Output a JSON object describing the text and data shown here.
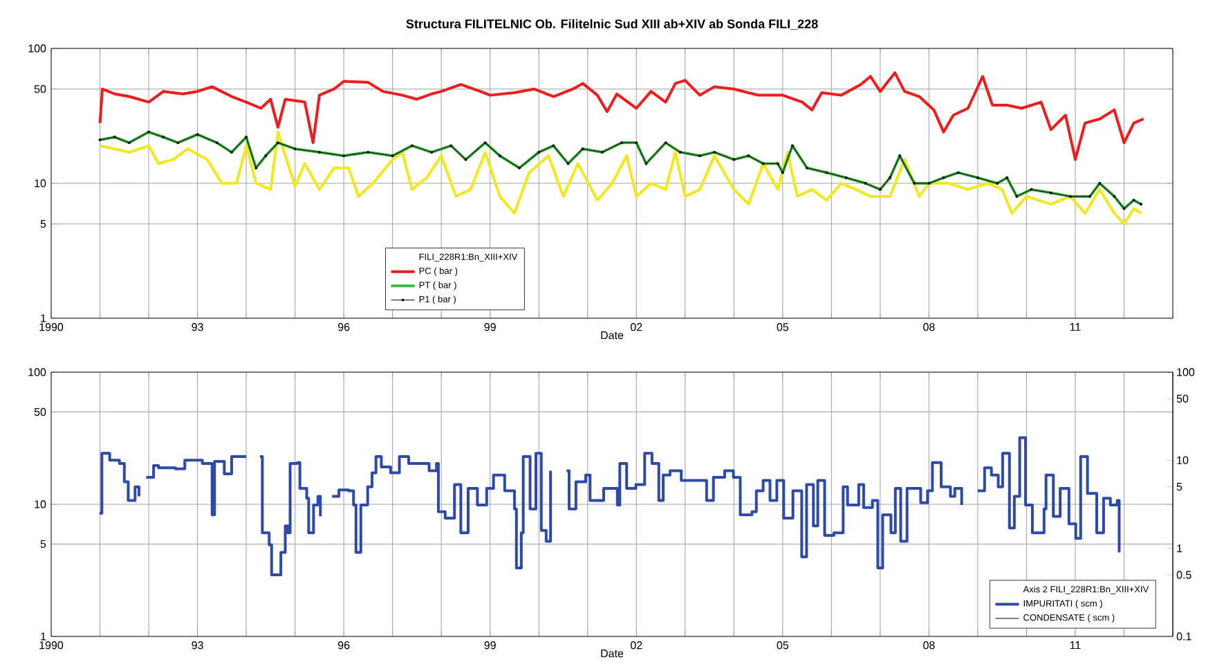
{
  "chart_data": [
    {
      "type": "line",
      "title": "Structura  FILITELNIC  Ob. Filitelnic Sud XIII ab+XIV ab   Sonda  FILI_228",
      "xlabel": "Date",
      "legend_title": "FILI_228R1:Bn_XIII+XIV",
      "legend": "bottom",
      "grid": true,
      "log": true,
      "xlim": [
        1990,
        2013
      ],
      "ylim": [
        1,
        100
      ],
      "yticks": [
        1,
        5,
        10,
        50,
        100
      ],
      "xticks": [
        {
          "value": 1990,
          "label": "1990"
        },
        {
          "value": 1991,
          "label": null
        },
        {
          "value": 1992,
          "label": null
        },
        {
          "value": 1993,
          "label": "93"
        },
        {
          "value": 1994,
          "label": null
        },
        {
          "value": 1995,
          "label": null
        },
        {
          "value": 1996,
          "label": "96"
        },
        {
          "value": 1997,
          "label": null
        },
        {
          "value": 1998,
          "label": null
        },
        {
          "value": 1999,
          "label": "99"
        },
        {
          "value": 2000,
          "label": null
        },
        {
          "value": 2001,
          "label": null
        },
        {
          "value": 2002,
          "label": "02"
        },
        {
          "value": 2003,
          "label": null
        },
        {
          "value": 2004,
          "label": null
        },
        {
          "value": 2005,
          "label": "05"
        },
        {
          "value": 2006,
          "label": null
        },
        {
          "value": 2007,
          "label": null
        },
        {
          "value": 2008,
          "label": "08"
        },
        {
          "value": 2009,
          "label": null
        },
        {
          "value": 2010,
          "label": null
        },
        {
          "value": 2011,
          "label": "11"
        },
        {
          "value": 2012,
          "label": null
        },
        {
          "value": 2013,
          "label": null
        }
      ],
      "series": [
        {
          "name": "PC ( bar )",
          "color": "#ee1c1c",
          "x": [
            1991.0,
            1991.05,
            1991.3,
            1991.6,
            1992.0,
            1992.3,
            1992.7,
            1993.0,
            1993.3,
            1993.7,
            1994.0,
            1994.3,
            1994.5,
            1994.65,
            1994.8,
            1995.2,
            1995.37,
            1995.5,
            1995.8,
            1996.0,
            1996.5,
            1996.8,
            1997.2,
            1997.5,
            1997.8,
            1998.0,
            1998.4,
            1998.8,
            1999.0,
            1999.5,
            1999.9,
            2000.3,
            2000.7,
            2000.9,
            2001.2,
            2001.4,
            2001.6,
            2002.0,
            2002.3,
            2002.6,
            2002.8,
            2003.0,
            2003.3,
            2003.6,
            2004.0,
            2004.5,
            2005.0,
            2005.4,
            2005.6,
            2005.8,
            2006.2,
            2006.6,
            2006.8,
            2007.0,
            2007.3,
            2007.5,
            2007.8,
            2008.1,
            2008.3,
            2008.5,
            2008.8,
            2009.1,
            2009.3,
            2009.6,
            2009.9,
            2010.3,
            2010.5,
            2010.8,
            2011.0,
            2011.2,
            2011.5,
            2011.8,
            2012.0,
            2012.2,
            2012.4
          ],
          "values": [
            28,
            50,
            46,
            44,
            40,
            48,
            46,
            48,
            52,
            44,
            40,
            36,
            42,
            26,
            42,
            40,
            20,
            45,
            50,
            57,
            56,
            48,
            45,
            42,
            46,
            48,
            54,
            48,
            45,
            47,
            50,
            44,
            50,
            55,
            45,
            34,
            46,
            36,
            48,
            40,
            55,
            58,
            45,
            52,
            50,
            45,
            45,
            40,
            35,
            47,
            45,
            54,
            62,
            48,
            66,
            48,
            44,
            35,
            24,
            32,
            36,
            62,
            38,
            38,
            36,
            40,
            25,
            32,
            15,
            28,
            30,
            35,
            20,
            28,
            30
          ]
        },
        {
          "color": "#f2e81c",
          "x": [
            1991.0,
            1991.3,
            1991.6,
            1992.0,
            1992.2,
            1992.5,
            1992.8,
            1993.2,
            1993.5,
            1993.8,
            1994.0,
            1994.2,
            1994.5,
            1994.65,
            1995.0,
            1995.2,
            1995.5,
            1995.8,
            1996.1,
            1996.3,
            1996.6,
            1997.0,
            1997.2,
            1997.4,
            1997.7,
            1998.0,
            1998.3,
            1998.6,
            1998.9,
            1999.2,
            1999.5,
            1999.8,
            2000.2,
            2000.5,
            2000.8,
            2001.2,
            2001.5,
            2001.8,
            2002.0,
            2002.3,
            2002.6,
            2002.8,
            2003.0,
            2003.3,
            2003.6,
            2004.0,
            2004.3,
            2004.6,
            2004.9,
            2005.1,
            2005.3,
            2005.6,
            2005.9,
            2006.2,
            2006.5,
            2006.8,
            2007.2,
            2007.5,
            2007.8,
            2008.0,
            2008.4,
            2008.8,
            2009.2,
            2009.5,
            2009.7,
            2010.0,
            2010.5,
            2010.9,
            2011.2,
            2011.5,
            2011.8,
            2012.0,
            2012.2,
            2012.35
          ],
          "values": [
            19,
            18,
            17,
            19,
            14,
            15,
            18,
            15,
            10,
            10,
            19,
            10,
            9,
            24,
            9.5,
            14,
            9,
            13,
            13,
            8,
            10,
            15,
            17,
            9,
            11,
            16,
            8,
            9,
            17,
            8,
            6,
            12,
            16,
            8,
            14,
            7.5,
            10,
            16,
            8,
            10,
            9,
            17,
            8,
            9,
            16,
            9,
            7,
            14,
            9,
            17,
            8,
            9,
            7.5,
            10,
            9,
            8,
            8,
            15,
            8,
            10,
            10,
            9,
            10,
            9,
            6,
            8,
            7,
            8,
            6,
            9,
            6,
            5,
            6.5,
            6
          ]
        },
        {
          "name": "PT ( bar )",
          "color": "#3cb83c",
          "x": [
            1991.0,
            1991.3,
            1991.6,
            1992.0,
            1992.3,
            1992.6,
            1993.0,
            1993.4,
            1993.7,
            1994.0,
            1994.2,
            1994.4,
            1994.65,
            1995.0,
            1995.5,
            1996.0,
            1996.5,
            1997.0,
            1997.4,
            1997.8,
            1998.2,
            1998.5,
            1998.9,
            1999.2,
            1999.6,
            2000.0,
            2000.3,
            2000.6,
            2000.9,
            2001.3,
            2001.7,
            2002.0,
            2002.2,
            2002.6,
            2002.9,
            2003.3,
            2003.6,
            2004.0,
            2004.3,
            2004.6,
            2004.9,
            2005.0,
            2005.2,
            2005.5,
            2005.9,
            2006.3,
            2006.7,
            2007.0,
            2007.2,
            2007.4,
            2007.7,
            2008.0,
            2008.3,
            2008.6,
            2009.0,
            2009.4,
            2009.6,
            2009.8,
            2010.1,
            2010.5,
            2010.9,
            2011.3,
            2011.5,
            2011.8,
            2012.0,
            2012.2,
            2012.35
          ],
          "values": [
            21,
            22,
            20,
            24,
            22,
            20,
            23,
            20,
            17,
            22,
            13,
            16,
            20,
            18,
            17,
            16,
            17,
            16,
            19,
            17,
            19,
            15,
            20,
            16,
            13,
            17,
            19,
            14,
            18,
            17,
            20,
            20,
            14,
            20,
            17,
            16,
            17,
            15,
            16,
            14,
            14,
            12,
            19,
            13,
            12,
            11,
            10,
            9,
            11,
            16,
            10,
            10,
            11,
            12,
            11,
            10,
            11,
            8,
            9,
            8.5,
            8,
            8,
            10,
            8,
            6.5,
            7.5,
            7
          ]
        },
        {
          "name": "P1 ( bar )",
          "color": "#000000",
          "marker": "circle",
          "x": [
            1991.0,
            1991.3,
            1991.6,
            1992.0,
            1992.3,
            1992.6,
            1993.0,
            1993.4,
            1993.7,
            1994.0,
            1994.2,
            1994.4,
            1994.65,
            1995.0,
            1995.5,
            1996.0,
            1996.5,
            1997.0,
            1997.4,
            1997.8,
            1998.2,
            1998.5,
            1998.9,
            1999.2,
            1999.6,
            2000.0,
            2000.3,
            2000.6,
            2000.9,
            2001.3,
            2001.7,
            2002.0,
            2002.2,
            2002.6,
            2002.9,
            2003.3,
            2003.6,
            2004.0,
            2004.3,
            2004.6,
            2004.9,
            2005.0,
            2005.2,
            2005.5,
            2005.9,
            2006.3,
            2006.7,
            2007.0,
            2007.2,
            2007.4,
            2007.7,
            2008.0,
            2008.3,
            2008.6,
            2009.0,
            2009.4,
            2009.6,
            2009.8,
            2010.1,
            2010.5,
            2010.9,
            2011.3,
            2011.5,
            2011.8,
            2012.0,
            2012.2,
            2012.35
          ],
          "values": [
            21,
            22,
            20,
            24,
            22,
            20,
            23,
            20,
            17,
            22,
            13,
            16,
            20,
            18,
            17,
            16,
            17,
            16,
            19,
            17,
            19,
            15,
            20,
            16,
            13,
            17,
            19,
            14,
            18,
            17,
            20,
            20,
            14,
            20,
            17,
            16,
            17,
            15,
            16,
            14,
            14,
            12,
            19,
            13,
            12,
            11,
            10,
            9,
            11,
            16,
            10,
            10,
            11,
            12,
            11,
            10,
            11,
            8,
            9,
            8.5,
            8,
            8,
            10,
            8,
            6.5,
            7.5,
            7
          ]
        }
      ]
    },
    {
      "type": "line",
      "xlabel": "Date",
      "grid": true,
      "log": true,
      "xlim": [
        1990,
        2013
      ],
      "ylim": [
        1,
        100
      ],
      "yticks": [
        1,
        5,
        10,
        50,
        100
      ],
      "xticks": [
        {
          "value": 1990,
          "label": "1990"
        },
        {
          "value": 1991,
          "label": null
        },
        {
          "value": 1992,
          "label": null
        },
        {
          "value": 1993,
          "label": "93"
        },
        {
          "value": 1994,
          "label": null
        },
        {
          "value": 1995,
          "label": null
        },
        {
          "value": 1996,
          "label": "96"
        },
        {
          "value": 1997,
          "label": null
        },
        {
          "value": 1998,
          "label": null
        },
        {
          "value": 1999,
          "label": "99"
        },
        {
          "value": 2000,
          "label": null
        },
        {
          "value": 2001,
          "label": null
        },
        {
          "value": 2002,
          "label": "02"
        },
        {
          "value": 2003,
          "label": null
        },
        {
          "value": 2004,
          "label": null
        },
        {
          "value": 2005,
          "label": "05"
        },
        {
          "value": 2006,
          "label": null
        },
        {
          "value": 2007,
          "label": null
        },
        {
          "value": 2008,
          "label": "08"
        },
        {
          "value": 2009,
          "label": null
        },
        {
          "value": 2010,
          "label": null
        },
        {
          "value": 2011,
          "label": "11"
        },
        {
          "value": 2012,
          "label": null
        },
        {
          "value": 2013,
          "label": null
        }
      ]
    },
    {
      "type": "line",
      "legend_title": "Axis 2  FILI_228R1:Bn_XIII+XIV",
      "legend": "bottom right",
      "log": "y2",
      "tick_labels": "y",
      "xlim": [
        1990,
        2013
      ],
      "y2lim": [
        0.1,
        100
      ],
      "y2ticks": [
        0.1,
        0.5,
        1,
        5,
        10,
        50,
        100
      ],
      "series": [
        {
          "name": "IMPURITATI ( scm )",
          "type": "step",
          "color": "#2e4aa8",
          "axis": "y2",
          "x": [
            1990.99,
            1991.04,
            1991.2,
            1991.4,
            1991.5,
            1991.58,
            1991.72,
            1991.8,
            1991.88,
            1991.95,
            1992.1,
            1992.2,
            1992.55,
            1992.74,
            1993.1,
            1993.3,
            1993.35,
            1993.55,
            1993.7,
            1994.0,
            1994.14,
            1994.28,
            1994.33,
            1994.47,
            1994.52,
            1994.66,
            1994.71,
            1994.8,
            1994.85,
            1994.9,
            1995.05,
            1995.1,
            1995.24,
            1995.28,
            1995.38,
            1995.47,
            1995.52,
            1995.64,
            1995.76,
            1995.9,
            1996.1,
            1996.2,
            1996.25,
            1996.35,
            1996.49,
            1996.58,
            1996.66,
            1996.77,
            1996.96,
            1997.14,
            1997.33,
            1997.75,
            1997.9,
            1997.94,
            1998.08,
            1998.27,
            1998.4,
            1998.55,
            1998.74,
            1998.93,
            1999.07,
            1999.3,
            1999.5,
            1999.54,
            1999.64,
            1999.68,
            1999.82,
            1999.94,
            2000.05,
            2000.15,
            2000.24,
            2000.4,
            2000.57,
            2000.62,
            2000.76,
            2000.96,
            2001.05,
            2001.33,
            2001.61,
            2001.66,
            2001.8,
            2001.99,
            2002.17,
            2002.32,
            2002.46,
            2002.55,
            2002.69,
            2002.92,
            2003.11,
            2003.44,
            2003.58,
            2003.81,
            2003.99,
            2004.13,
            2004.37,
            2004.46,
            2004.6,
            2004.74,
            2004.88,
            2005.02,
            2005.21,
            2005.39,
            2005.49,
            2005.63,
            2005.72,
            2005.86,
            2006.05,
            2006.24,
            2006.33,
            2006.56,
            2006.66,
            2006.84,
            2006.95,
            2007.05,
            2007.22,
            2007.31,
            2007.42,
            2007.55,
            2007.83,
            2007.97,
            2008.07,
            2008.25,
            2008.44,
            2008.53,
            2008.67,
            2008.85,
            2009.0,
            2009.14,
            2009.28,
            2009.42,
            2009.51,
            2009.65,
            2009.75,
            2009.86,
            2009.98,
            2010.12,
            2010.36,
            2010.4,
            2010.55,
            2010.69,
            2010.87,
            2011.01,
            2011.11,
            2011.25,
            2011.44,
            2011.58,
            2011.72,
            2011.86,
            2011.9
          ],
          "values": [
            2.5,
            12,
            10,
            9.2,
            5.7,
            3.5,
            5.0,
            3.9,
            null,
            6.4,
            8.7,
            8.2,
            8.0,
            10,
            9.2,
            2.4,
            9.7,
            7.0,
            11,
            11,
            null,
            11,
            1.5,
            1.1,
            0.5,
            0.5,
            0.9,
            1.8,
            1.5,
            9.2,
            9.4,
            4.8,
            3.7,
            1.5,
            3.1,
            3.9,
            2.3,
            null,
            3.9,
            4.6,
            4.5,
            3.1,
            0.9,
            3.1,
            5.0,
            7.2,
            11,
            8.4,
            7.2,
            11,
            9.2,
            7.6,
            9.2,
            2.6,
            2.2,
            5.3,
            1.5,
            4.8,
            3.1,
            4.8,
            6.8,
            4.5,
            2.8,
            0.6,
            1.5,
            11,
            2.8,
            12,
            1.6,
            1.2,
            7.6,
            null,
            7.6,
            2.8,
            5.7,
            6.8,
            3.5,
            4.8,
            3.1,
            9.2,
            4.8,
            5.3,
            12,
            9.2,
            3.5,
            6.8,
            7.6,
            5.9,
            5.9,
            3.5,
            6.4,
            7.6,
            6.4,
            2.4,
            2.6,
            4.5,
            5.9,
            3.5,
            5.9,
            2.2,
            4.5,
            0.8,
            5.3,
            1.8,
            5.9,
            1.4,
            1.5,
            5.0,
            3.1,
            5.3,
            2.9,
            3.5,
            0.6,
            2.4,
            1.5,
            4.8,
            1.2,
            4.8,
            3.3,
            4.5,
            9.4,
            5.0,
            3.9,
            4.8,
            3.1,
            null,
            4.5,
            8.2,
            6.8,
            5.0,
            12,
            1.7,
            3.9,
            18,
            3.1,
            1.5,
            2.8,
            6.8,
            2.3,
            4.8,
            1.9,
            1.3,
            11,
            4.2,
            1.5,
            3.7,
            3.1,
            3.5,
            0.9
          ]
        },
        {
          "name": "CONDENSATE ( scm )",
          "color": "#000000",
          "axis": "y2"
        }
      ]
    }
  ]
}
